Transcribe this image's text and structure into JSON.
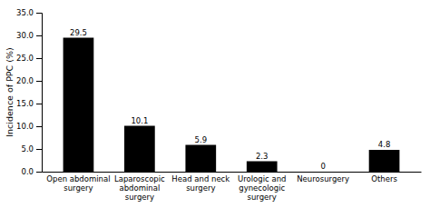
{
  "chart_data": {
    "type": "bar",
    "categories": [
      "Open abdominal\nsurgery",
      "Laparoscopic\nabdominal\nsurgery",
      "Head and neck\nsurgery",
      "Urologic and\ngynecologic\nsurgery",
      "Neurosurgery",
      "Others"
    ],
    "values": [
      29.5,
      10.1,
      5.9,
      2.3,
      0,
      4.8
    ],
    "color": "#000000",
    "y_label": "Incidence of PPC (%)",
    "ylim": [
      0,
      35
    ],
    "yticks": [
      {
        "value": 0.0,
        "label": "0.0"
      },
      {
        "value": 5.0,
        "label": "5.0"
      },
      {
        "value": 10.0,
        "label": "10.0"
      },
      {
        "value": 15.0,
        "label": "15.0"
      },
      {
        "value": 20.0,
        "label": "20.0"
      },
      {
        "value": 25.0,
        "label": "25.0"
      },
      {
        "value": 30.0,
        "label": "30.0"
      },
      {
        "value": 35.0,
        "label": "35.0"
      }
    ],
    "grid": false,
    "data_labels": true
  }
}
